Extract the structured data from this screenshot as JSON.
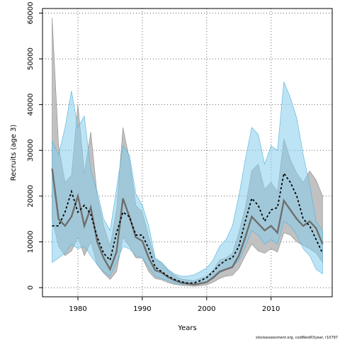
{
  "chart_data": {
    "type": "line",
    "xlabel": "Years",
    "ylabel": "Recruits (age 3)",
    "xlim": [
      1974.5,
      2019.5
    ],
    "ylim": [
      -2000,
      61000
    ],
    "xticks": [
      1980,
      1990,
      2000,
      2010
    ],
    "yticks": [
      0,
      10000,
      20000,
      30000,
      40000,
      50000,
      60000
    ],
    "grid": true,
    "grid_style": "dotted",
    "footer": "stockassessment.org, codWestR3year, r10797",
    "colors": {
      "band_grey": "#bebebe",
      "band_blue": "#87ceeb",
      "line_grey": "#6e6e6e",
      "line_black": "#000000"
    },
    "x": [
      1976,
      1977,
      1978,
      1979,
      1980,
      1981,
      1982,
      1983,
      1984,
      1985,
      1986,
      1987,
      1988,
      1989,
      1990,
      1991,
      1992,
      1993,
      1994,
      1995,
      1996,
      1997,
      1998,
      1999,
      2000,
      2001,
      2002,
      2003,
      2004,
      2005,
      2006,
      2007,
      2008,
      2009,
      2010,
      2011,
      2012,
      2013,
      2014,
      2015,
      2016,
      2017,
      2018
    ],
    "series": [
      {
        "style": "solid-grey",
        "values": [
          26000,
          15000,
          13500,
          15500,
          20000,
          13500,
          17500,
          10000,
          6500,
          4000,
          7800,
          19500,
          15500,
          11000,
          10200,
          6500,
          3800,
          3300,
          2300,
          1600,
          1100,
          900,
          700,
          900,
          1200,
          2200,
          3500,
          4000,
          4500,
          7000,
          11000,
          15500,
          14000,
          12500,
          13500,
          12000,
          19000,
          17000,
          15000,
          13500,
          14500,
          13000,
          9500
        ]
      },
      {
        "style": "dashed-black",
        "values": [
          13500,
          13500,
          16500,
          21000,
          16500,
          18000,
          16000,
          11000,
          7500,
          6000,
          12000,
          16500,
          15500,
          11500,
          11500,
          8500,
          4500,
          3500,
          2500,
          1800,
          1300,
          1000,
          1000,
          1500,
          2200,
          3500,
          5000,
          6000,
          6500,
          9000,
          14500,
          19500,
          18000,
          14500,
          17000,
          17500,
          25000,
          23000,
          20000,
          15000,
          13500,
          10500,
          7500
        ]
      }
    ],
    "bands": [
      {
        "style": "grey",
        "lower": [
          15000,
          9000,
          7000,
          8000,
          11000,
          7000,
          10000,
          5000,
          3200,
          1800,
          3500,
          11000,
          9000,
          6500,
          6500,
          3500,
          2000,
          1700,
          1100,
          700,
          500,
          400,
          300,
          400,
          600,
          1200,
          2000,
          2500,
          2700,
          4200,
          7000,
          9500,
          8000,
          7500,
          8500,
          7800,
          12000,
          11500,
          10000,
          9200,
          8500,
          7500,
          5500
        ],
        "upper": [
          59000,
          31000,
          23000,
          24500,
          40000,
          25000,
          34000,
          20000,
          13500,
          9000,
          17000,
          35000,
          28000,
          18000,
          16500,
          11000,
          6200,
          5500,
          3800,
          2700,
          1900,
          1700,
          1500,
          2000,
          2500,
          3800,
          6000,
          6500,
          7500,
          12000,
          17500,
          25500,
          27000,
          21500,
          23000,
          21000,
          32500,
          28000,
          25000,
          23000,
          25500,
          23500,
          20000
        ]
      },
      {
        "style": "blue",
        "lower": [
          5500,
          6500,
          7500,
          9500,
          8500,
          9000,
          7000,
          5000,
          3500,
          2500,
          5500,
          9000,
          8500,
          7000,
          6500,
          4500,
          2500,
          2000,
          1500,
          1000,
          800,
          700,
          700,
          800,
          1200,
          2000,
          3200,
          4000,
          4500,
          6000,
          9000,
          12500,
          11500,
          9500,
          10500,
          9500,
          14500,
          13500,
          11500,
          8500,
          7000,
          4000,
          3000
        ],
        "upper": [
          32000,
          29000,
          35000,
          43000,
          35000,
          37500,
          25500,
          21000,
          15000,
          12500,
          21500,
          31000,
          29000,
          20500,
          18000,
          13500,
          6500,
          5500,
          4000,
          3000,
          2500,
          2500,
          2800,
          3500,
          4300,
          6000,
          9000,
          10500,
          13500,
          20000,
          28000,
          35000,
          33500,
          27000,
          31000,
          30000,
          45000,
          41500,
          37000,
          29000,
          22500,
          14500,
          12500
        ]
      }
    ]
  }
}
